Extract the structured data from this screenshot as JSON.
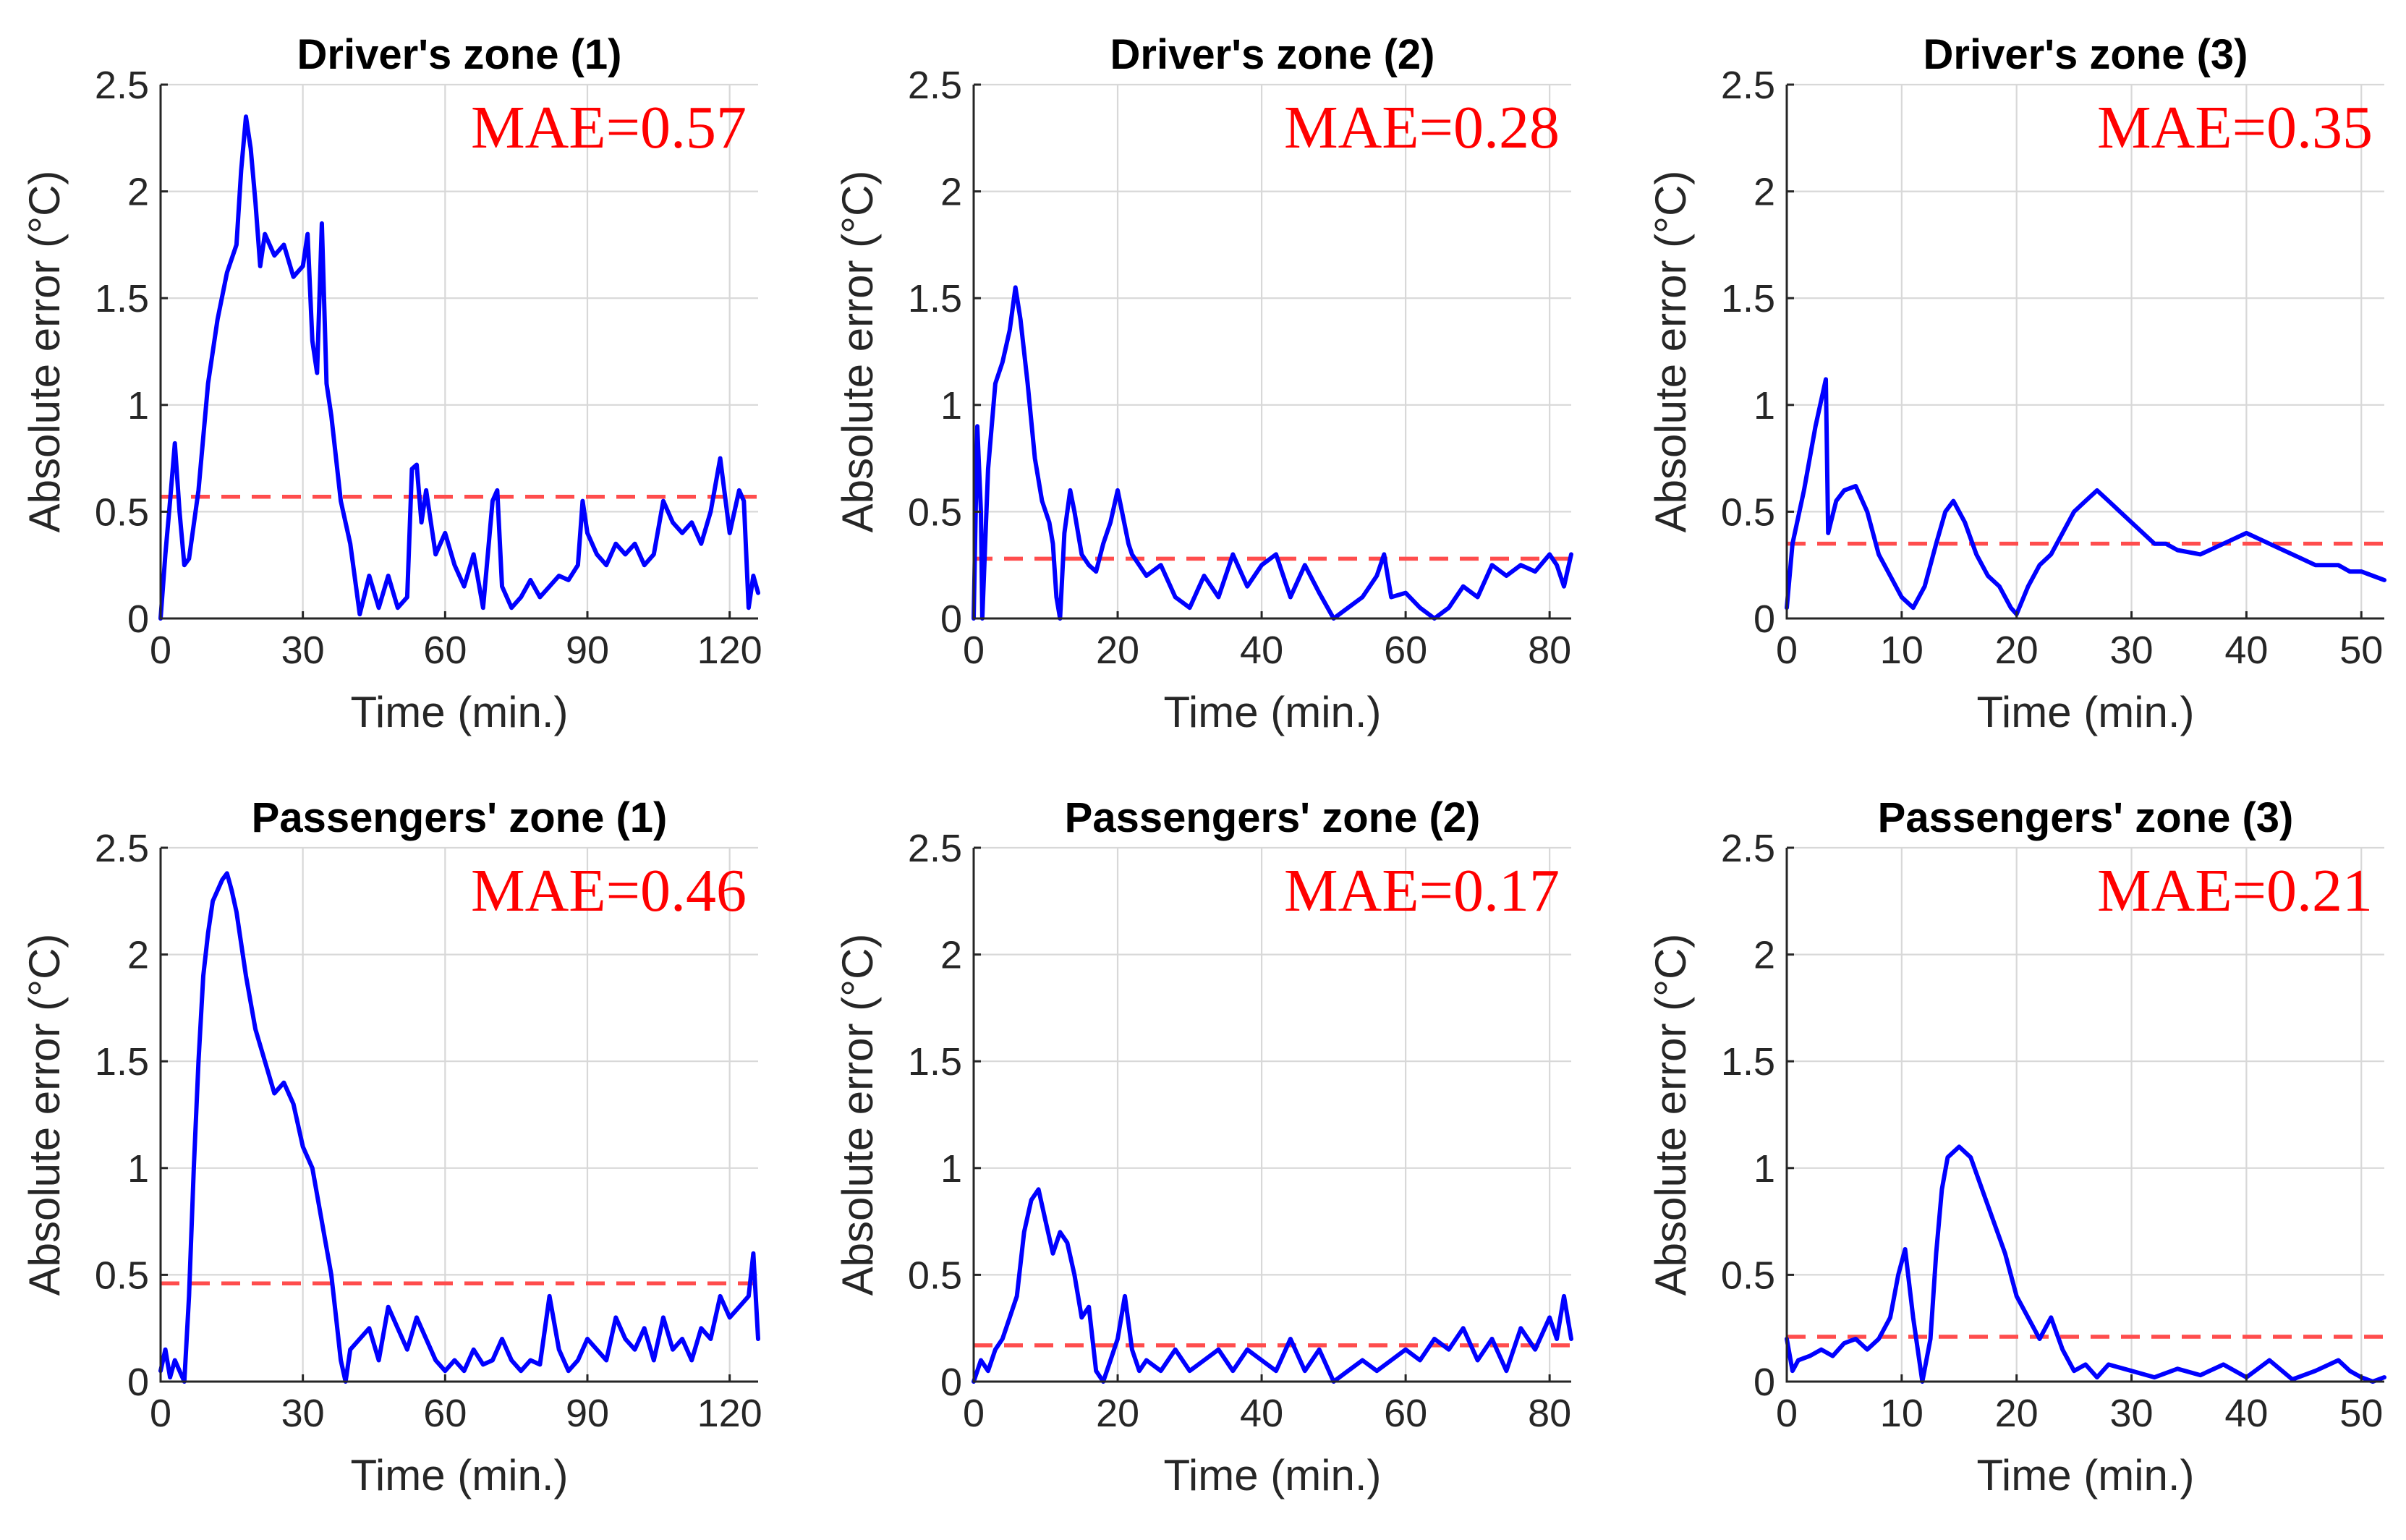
{
  "colors": {
    "series": "#0000ff",
    "mae": "#ff4d4d",
    "mae_text": "#ff0000"
  },
  "chart_data": [
    {
      "type": "line",
      "title": "Driver's zone (1)",
      "xlabel": "Time (min.)",
      "ylabel": "Absolute error (°C)",
      "xlim": [
        0,
        126
      ],
      "ylim": [
        0,
        2.5
      ],
      "xticks": [
        0,
        30,
        60,
        90,
        120
      ],
      "xtick_labels": [
        "0",
        "30",
        "60",
        "90",
        "120"
      ],
      "yticks": [
        0,
        0.5,
        1,
        1.5,
        2,
        2.5
      ],
      "ytick_labels": [
        "0",
        "0.5",
        "1",
        "1.5",
        "2",
        "2.5"
      ],
      "mae_value": 0.57,
      "mae_label": "MAE=0.57",
      "series": [
        {
          "name": "Absolute error",
          "x": [
            0,
            1,
            2,
            3,
            4,
            5,
            6,
            8,
            10,
            12,
            14,
            16,
            17,
            18,
            19,
            20,
            21,
            22,
            24,
            26,
            28,
            30,
            31,
            32,
            33,
            34,
            35,
            36,
            38,
            40,
            42,
            44,
            46,
            48,
            50,
            52,
            53,
            54,
            55,
            56,
            58,
            60,
            62,
            64,
            66,
            68,
            70,
            71,
            72,
            74,
            76,
            78,
            80,
            82,
            84,
            86,
            88,
            89,
            90,
            92,
            94,
            96,
            98,
            100,
            102,
            104,
            106,
            108,
            110,
            112,
            114,
            116,
            118,
            120,
            122,
            123,
            124,
            125,
            126
          ],
          "values": [
            0,
            0.3,
            0.55,
            0.82,
            0.5,
            0.25,
            0.28,
            0.6,
            1.1,
            1.4,
            1.62,
            1.75,
            2.1,
            2.35,
            2.2,
            1.95,
            1.65,
            1.8,
            1.7,
            1.75,
            1.6,
            1.65,
            1.8,
            1.3,
            1.15,
            1.85,
            1.1,
            0.95,
            0.55,
            0.35,
            0.02,
            0.2,
            0.05,
            0.2,
            0.05,
            0.1,
            0.7,
            0.72,
            0.45,
            0.6,
            0.3,
            0.4,
            0.25,
            0.15,
            0.3,
            0.05,
            0.55,
            0.6,
            0.15,
            0.05,
            0.1,
            0.18,
            0.1,
            0.15,
            0.2,
            0.18,
            0.25,
            0.55,
            0.4,
            0.3,
            0.25,
            0.35,
            0.3,
            0.35,
            0.25,
            0.3,
            0.55,
            0.45,
            0.4,
            0.45,
            0.35,
            0.5,
            0.75,
            0.4,
            0.6,
            0.55,
            0.05,
            0.2,
            0.12
          ]
        }
      ]
    },
    {
      "type": "line",
      "title": "Driver's zone (2)",
      "xlabel": "Time (min.)",
      "ylabel": "Absolute error (°C)",
      "xlim": [
        0,
        83
      ],
      "ylim": [
        0,
        2.5
      ],
      "xticks": [
        0,
        20,
        40,
        60,
        80
      ],
      "xtick_labels": [
        "0",
        "20",
        "40",
        "60",
        "80"
      ],
      "yticks": [
        0,
        0.5,
        1,
        1.5,
        2,
        2.5
      ],
      "ytick_labels": [
        "0",
        "0.5",
        "1",
        "1.5",
        "2",
        "2.5"
      ],
      "mae_value": 0.28,
      "mae_label": "MAE=0.28",
      "series": [
        {
          "name": "Absolute error",
          "x": [
            0,
            0.5,
            1,
            1.2,
            2,
            3,
            4,
            5,
            5.8,
            6.5,
            7.5,
            8.5,
            9.5,
            10.5,
            11,
            11.5,
            12,
            12.6,
            13.4,
            14,
            15,
            16,
            17,
            18,
            19,
            20,
            20.6,
            21.5,
            22,
            24,
            26,
            28,
            30,
            32,
            34,
            36,
            38,
            40,
            42,
            44,
            46,
            48,
            50,
            52,
            54,
            56,
            57,
            58,
            60,
            62,
            64,
            66,
            68,
            70,
            72,
            74,
            76,
            78,
            80,
            81,
            82,
            83
          ],
          "values": [
            0,
            0.9,
            0.5,
            0,
            0.7,
            1.1,
            1.2,
            1.35,
            1.55,
            1.4,
            1.1,
            0.75,
            0.55,
            0.45,
            0.35,
            0.1,
            0,
            0.4,
            0.6,
            0.5,
            0.3,
            0.25,
            0.22,
            0.35,
            0.45,
            0.6,
            0.5,
            0.35,
            0.3,
            0.2,
            0.25,
            0.1,
            0.05,
            0.2,
            0.1,
            0.3,
            0.15,
            0.25,
            0.3,
            0.1,
            0.25,
            0.12,
            0,
            0.05,
            0.1,
            0.2,
            0.3,
            0.1,
            0.12,
            0.05,
            0.0,
            0.05,
            0.15,
            0.1,
            0.25,
            0.2,
            0.25,
            0.22,
            0.3,
            0.25,
            0.15,
            0.3
          ]
        }
      ]
    },
    {
      "type": "line",
      "title": "Driver's zone (3)",
      "xlabel": "Time (min.)",
      "ylabel": "Absolute error (°C)",
      "xlim": [
        0,
        52
      ],
      "ylim": [
        0,
        2.5
      ],
      "xticks": [
        0,
        10,
        20,
        30,
        40,
        50
      ],
      "xtick_labels": [
        "0",
        "10",
        "20",
        "30",
        "40",
        "50"
      ],
      "yticks": [
        0,
        0.5,
        1,
        1.5,
        2,
        2.5
      ],
      "ytick_labels": [
        "0",
        "0.5",
        "1",
        "1.5",
        "2",
        "2.5"
      ],
      "mae_value": 0.35,
      "mae_label": "MAE=0.35",
      "series": [
        {
          "name": "Absolute error",
          "x": [
            0,
            0.5,
            1.5,
            2.5,
            3.4,
            3.6,
            4.3,
            5,
            6,
            7,
            8,
            9,
            10,
            11,
            12,
            13,
            13.8,
            14.5,
            15.5,
            16.5,
            17.5,
            18.5,
            19.5,
            20,
            21,
            22,
            23,
            24,
            25,
            26,
            27,
            28,
            29,
            30,
            31,
            32,
            33,
            34,
            36,
            38,
            40,
            42,
            44,
            46,
            48,
            49,
            50,
            51,
            52
          ],
          "values": [
            0.05,
            0.35,
            0.6,
            0.9,
            1.12,
            0.4,
            0.55,
            0.6,
            0.62,
            0.5,
            0.3,
            0.2,
            0.1,
            0.05,
            0.15,
            0.35,
            0.5,
            0.55,
            0.45,
            0.3,
            0.2,
            0.15,
            0.05,
            0.02,
            0.15,
            0.25,
            0.3,
            0.4,
            0.5,
            0.55,
            0.6,
            0.55,
            0.5,
            0.45,
            0.4,
            0.35,
            0.35,
            0.32,
            0.3,
            0.35,
            0.4,
            0.35,
            0.3,
            0.25,
            0.25,
            0.22,
            0.22,
            0.2,
            0.18
          ]
        }
      ]
    },
    {
      "type": "line",
      "title": "Passengers' zone (1)",
      "xlabel": "Time (min.)",
      "ylabel": "Absolute error (°C)",
      "xlim": [
        0,
        126
      ],
      "ylim": [
        0,
        2.5
      ],
      "xticks": [
        0,
        30,
        60,
        90,
        120
      ],
      "xtick_labels": [
        "0",
        "30",
        "60",
        "90",
        "120"
      ],
      "yticks": [
        0,
        0.5,
        1,
        1.5,
        2,
        2.5
      ],
      "ytick_labels": [
        "0",
        "0.5",
        "1",
        "1.5",
        "2",
        "2.5"
      ],
      "mae_value": 0.46,
      "mae_label": "MAE=0.46",
      "series": [
        {
          "name": "Absolute error",
          "x": [
            0,
            1,
            2,
            3,
            4,
            5,
            6,
            7,
            8,
            9,
            10,
            11,
            12,
            13,
            14,
            15,
            16,
            18,
            20,
            22,
            24,
            26,
            28,
            30,
            32,
            34,
            36,
            37,
            38,
            39,
            40,
            42,
            44,
            46,
            48,
            50,
            52,
            54,
            56,
            58,
            60,
            62,
            64,
            66,
            68,
            70,
            72,
            74,
            76,
            78,
            80,
            82,
            84,
            86,
            88,
            90,
            92,
            94,
            96,
            98,
            100,
            102,
            104,
            106,
            108,
            110,
            112,
            114,
            116,
            118,
            120,
            122,
            124,
            125,
            126
          ],
          "values": [
            0.05,
            0.15,
            0.02,
            0.1,
            0.05,
            0,
            0.4,
            1.0,
            1.5,
            1.9,
            2.1,
            2.25,
            2.3,
            2.35,
            2.38,
            2.3,
            2.2,
            1.9,
            1.65,
            1.5,
            1.35,
            1.4,
            1.3,
            1.1,
            1.0,
            0.75,
            0.5,
            0.3,
            0.1,
            0,
            0.15,
            0.2,
            0.25,
            0.1,
            0.35,
            0.25,
            0.15,
            0.3,
            0.2,
            0.1,
            0.05,
            0.1,
            0.05,
            0.15,
            0.08,
            0.1,
            0.2,
            0.1,
            0.05,
            0.1,
            0.08,
            0.4,
            0.15,
            0.05,
            0.1,
            0.2,
            0.15,
            0.1,
            0.3,
            0.2,
            0.15,
            0.25,
            0.1,
            0.3,
            0.15,
            0.2,
            0.1,
            0.25,
            0.2,
            0.4,
            0.3,
            0.35,
            0.4,
            0.6,
            0.2
          ]
        }
      ]
    },
    {
      "type": "line",
      "title": "Passengers' zone (2)",
      "xlabel": "Time (min.)",
      "ylabel": "Absolute error (°C)",
      "xlim": [
        0,
        83
      ],
      "ylim": [
        0,
        2.5
      ],
      "xticks": [
        0,
        20,
        40,
        60,
        80
      ],
      "xtick_labels": [
        "0",
        "20",
        "40",
        "60",
        "80"
      ],
      "yticks": [
        0,
        0.5,
        1,
        1.5,
        2,
        2.5
      ],
      "ytick_labels": [
        "0",
        "0.5",
        "1",
        "1.5",
        "2",
        "2.5"
      ],
      "mae_value": 0.17,
      "mae_label": "MAE=0.17",
      "series": [
        {
          "name": "Absolute error",
          "x": [
            0,
            1,
            2,
            3,
            4,
            5,
            6,
            7,
            8,
            9,
            10,
            11,
            12,
            13,
            14,
            15,
            16,
            17,
            18,
            19,
            20,
            21,
            22,
            23,
            24,
            26,
            28,
            30,
            32,
            34,
            36,
            38,
            40,
            42,
            44,
            46,
            48,
            50,
            52,
            54,
            56,
            58,
            60,
            62,
            64,
            66,
            68,
            70,
            72,
            74,
            76,
            78,
            80,
            81,
            82,
            83
          ],
          "values": [
            0,
            0.1,
            0.05,
            0.15,
            0.2,
            0.3,
            0.4,
            0.7,
            0.85,
            0.9,
            0.75,
            0.6,
            0.7,
            0.65,
            0.5,
            0.3,
            0.35,
            0.05,
            0,
            0.1,
            0.2,
            0.4,
            0.15,
            0.05,
            0.1,
            0.05,
            0.15,
            0.05,
            0.1,
            0.15,
            0.05,
            0.15,
            0.1,
            0.05,
            0.2,
            0.05,
            0.15,
            0,
            0.05,
            0.1,
            0.05,
            0.1,
            0.15,
            0.1,
            0.2,
            0.15,
            0.25,
            0.1,
            0.2,
            0.05,
            0.25,
            0.15,
            0.3,
            0.2,
            0.4,
            0.2
          ]
        }
      ]
    },
    {
      "type": "line",
      "title": "Passengers' zone (3)",
      "xlabel": "Time (min.)",
      "ylabel": "Absolute error (°C)",
      "xlim": [
        0,
        52
      ],
      "ylim": [
        0,
        2.5
      ],
      "xticks": [
        0,
        10,
        20,
        30,
        40,
        50
      ],
      "xtick_labels": [
        "0",
        "10",
        "20",
        "30",
        "40",
        "50"
      ],
      "yticks": [
        0,
        0.5,
        1,
        1.5,
        2,
        2.5
      ],
      "ytick_labels": [
        "0",
        "0.5",
        "1",
        "1.5",
        "2",
        "2.5"
      ],
      "mae_value": 0.21,
      "mae_label": "MAE=0.21",
      "series": [
        {
          "name": "Absolute error",
          "x": [
            0,
            0.5,
            1,
            2,
            3,
            4,
            5,
            6,
            7,
            8,
            9,
            9.7,
            10.3,
            11,
            11.8,
            12.5,
            13,
            13.5,
            14,
            15,
            16,
            17,
            18,
            19,
            20,
            21,
            22,
            23,
            24,
            25,
            26,
            27,
            28,
            30,
            32,
            34,
            36,
            38,
            40,
            42,
            44,
            46,
            48,
            49,
            50,
            51,
            52
          ],
          "values": [
            0.2,
            0.05,
            0.1,
            0.12,
            0.15,
            0.12,
            0.18,
            0.2,
            0.15,
            0.2,
            0.3,
            0.5,
            0.62,
            0.3,
            0,
            0.2,
            0.6,
            0.9,
            1.05,
            1.1,
            1.05,
            0.9,
            0.75,
            0.6,
            0.4,
            0.3,
            0.2,
            0.3,
            0.15,
            0.05,
            0.08,
            0.02,
            0.08,
            0.05,
            0.02,
            0.06,
            0.03,
            0.08,
            0.02,
            0.1,
            0.01,
            0.05,
            0.1,
            0.05,
            0.02,
            0.0,
            0.02
          ]
        }
      ]
    }
  ]
}
